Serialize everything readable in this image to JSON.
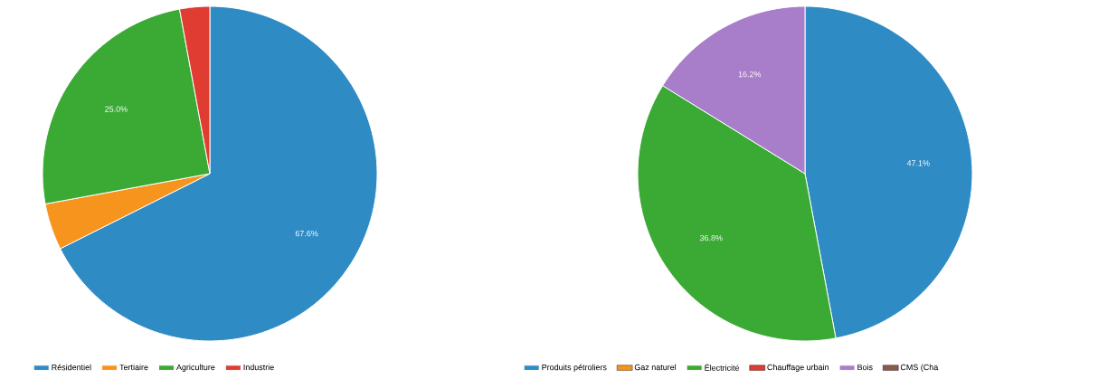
{
  "chart_data": [
    {
      "type": "pie",
      "categories": [
        "Résidentiel",
        "Tertiaire",
        "Agriculture",
        "Industrie"
      ],
      "values": [
        67.6,
        4.5,
        25.0,
        2.9
      ],
      "colors": [
        "#2e8bc4",
        "#f7941d",
        "#3aaa35",
        "#e03c31"
      ],
      "value_labels": [
        "67.6%",
        null,
        "25.0%",
        null
      ],
      "legend": "bottom"
    },
    {
      "type": "pie",
      "categories": [
        "Produits pétroliers",
        "Gaz naturel",
        "Électricité",
        "Chauffage urbain",
        "Bois",
        "CMS (Cha"
      ],
      "values": [
        47.1,
        0,
        36.8,
        0,
        16.2,
        0
      ],
      "colors": [
        "#2e8bc4",
        "#f7941d",
        "#3aaa35",
        "#e03c31",
        "#a87dc9",
        "#8c5b4b"
      ],
      "value_labels": [
        "47.1%",
        null,
        "36.8%",
        null,
        "16.2%",
        null
      ],
      "legend": "bottom"
    }
  ]
}
